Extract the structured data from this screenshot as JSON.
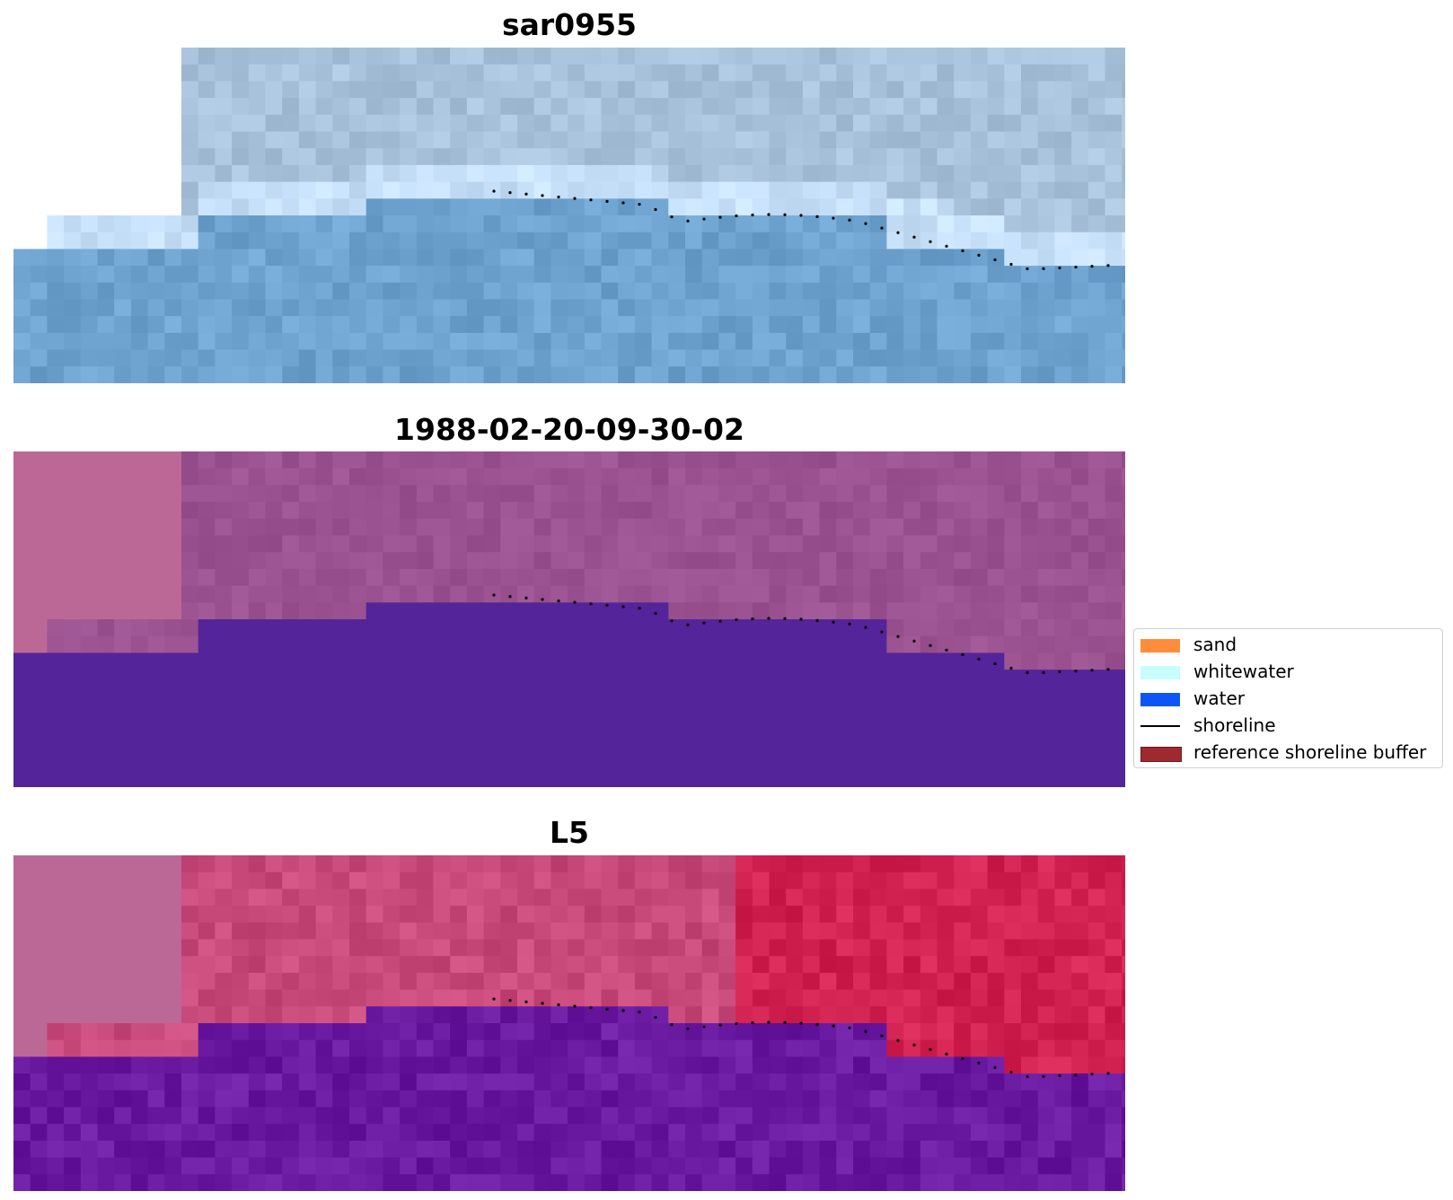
{
  "panels": [
    {
      "title": "sar0955",
      "palette": "sar"
    },
    {
      "title": "1988-02-20-09-30-02",
      "palette": "classified"
    },
    {
      "title": "L5",
      "palette": "mndwi"
    }
  ],
  "legend": {
    "items": [
      {
        "label": "sand",
        "color": "#ff8c3a",
        "type": "patch"
      },
      {
        "label": "whitewater",
        "color": "#c8fdfd",
        "type": "patch"
      },
      {
        "label": "water",
        "color": "#0b56f5",
        "type": "patch"
      },
      {
        "label": "shoreline",
        "color": "#000000",
        "type": "line"
      },
      {
        "label": "reference shoreline buffer",
        "color": "#9e2a2f",
        "type": "patch"
      }
    ]
  },
  "colors": {
    "sar_land": "#a9c2db",
    "sar_water": "#6fa3cf",
    "classified_land": "#9a5290",
    "classified_water": "#54249a",
    "classified_nodata": "#bc6896",
    "mndwi_land": "#c84a7a",
    "mndwi_water": "#6a1aa0",
    "mndwi_nodata": "#bc6896",
    "shoreline_dots": "#000000"
  }
}
